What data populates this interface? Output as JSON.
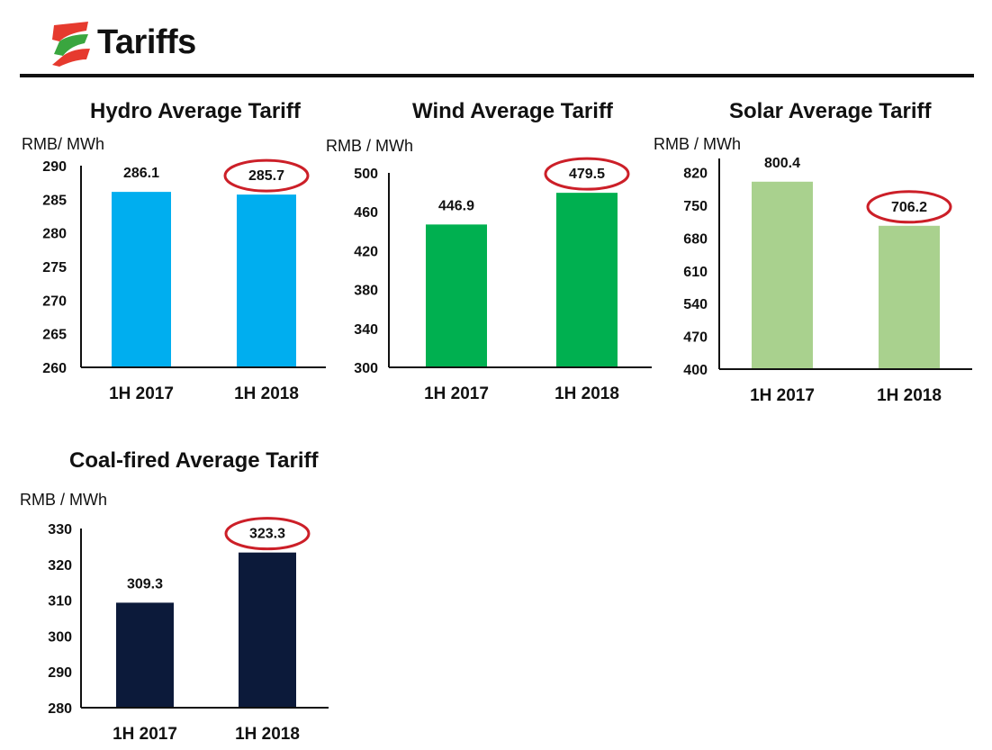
{
  "header": {
    "title": "Tariffs",
    "logo_icon": "brand-logo-icon",
    "logo_colors": [
      "#e63a2e",
      "#3aa63f"
    ]
  },
  "highlight_color": "#cc1f28",
  "chart_data": [
    {
      "id": "hydro",
      "type": "bar",
      "title": "Hydro Average Tariff",
      "ylabel": "RMB/ MWh",
      "categories": [
        "1H 2017",
        "1H 2018"
      ],
      "values": [
        286.1,
        285.7
      ],
      "value_labels": [
        "286.1",
        "285.7"
      ],
      "ylim": [
        260,
        290
      ],
      "yticks": [
        260,
        265,
        270,
        275,
        280,
        285,
        290
      ],
      "color": "#00aeef",
      "highlighted_index": 1
    },
    {
      "id": "wind",
      "type": "bar",
      "title": "Wind Average Tariff",
      "ylabel": "RMB / MWh",
      "categories": [
        "1H 2017",
        "1H 2018"
      ],
      "values": [
        446.9,
        479.5
      ],
      "value_labels": [
        "446.9",
        "479.5"
      ],
      "ylim": [
        300,
        500
      ],
      "yticks": [
        300,
        340,
        380,
        420,
        460,
        500
      ],
      "color": "#00b050",
      "highlighted_index": 1
    },
    {
      "id": "solar",
      "type": "bar",
      "title": "Solar Average Tariff",
      "ylabel": "RMB / MWh",
      "categories": [
        "1H 2017",
        "1H 2018"
      ],
      "values": [
        800.4,
        706.2
      ],
      "value_labels": [
        "800.4",
        "706.2"
      ],
      "ylim": [
        400,
        850
      ],
      "yticks": [
        400,
        470,
        540,
        610,
        680,
        750,
        820
      ],
      "color": "#a9d18e",
      "highlighted_index": 1
    },
    {
      "id": "coal",
      "type": "bar",
      "title": "Coal-fired Average Tariff",
      "ylabel": "RMB / MWh",
      "categories": [
        "1H 2017",
        "1H 2018"
      ],
      "values": [
        309.3,
        323.3
      ],
      "value_labels": [
        "309.3",
        "323.3"
      ],
      "ylim": [
        280,
        330
      ],
      "yticks": [
        280,
        290,
        300,
        310,
        320,
        330
      ],
      "color": "#0c1a3a",
      "highlighted_index": 1
    }
  ]
}
